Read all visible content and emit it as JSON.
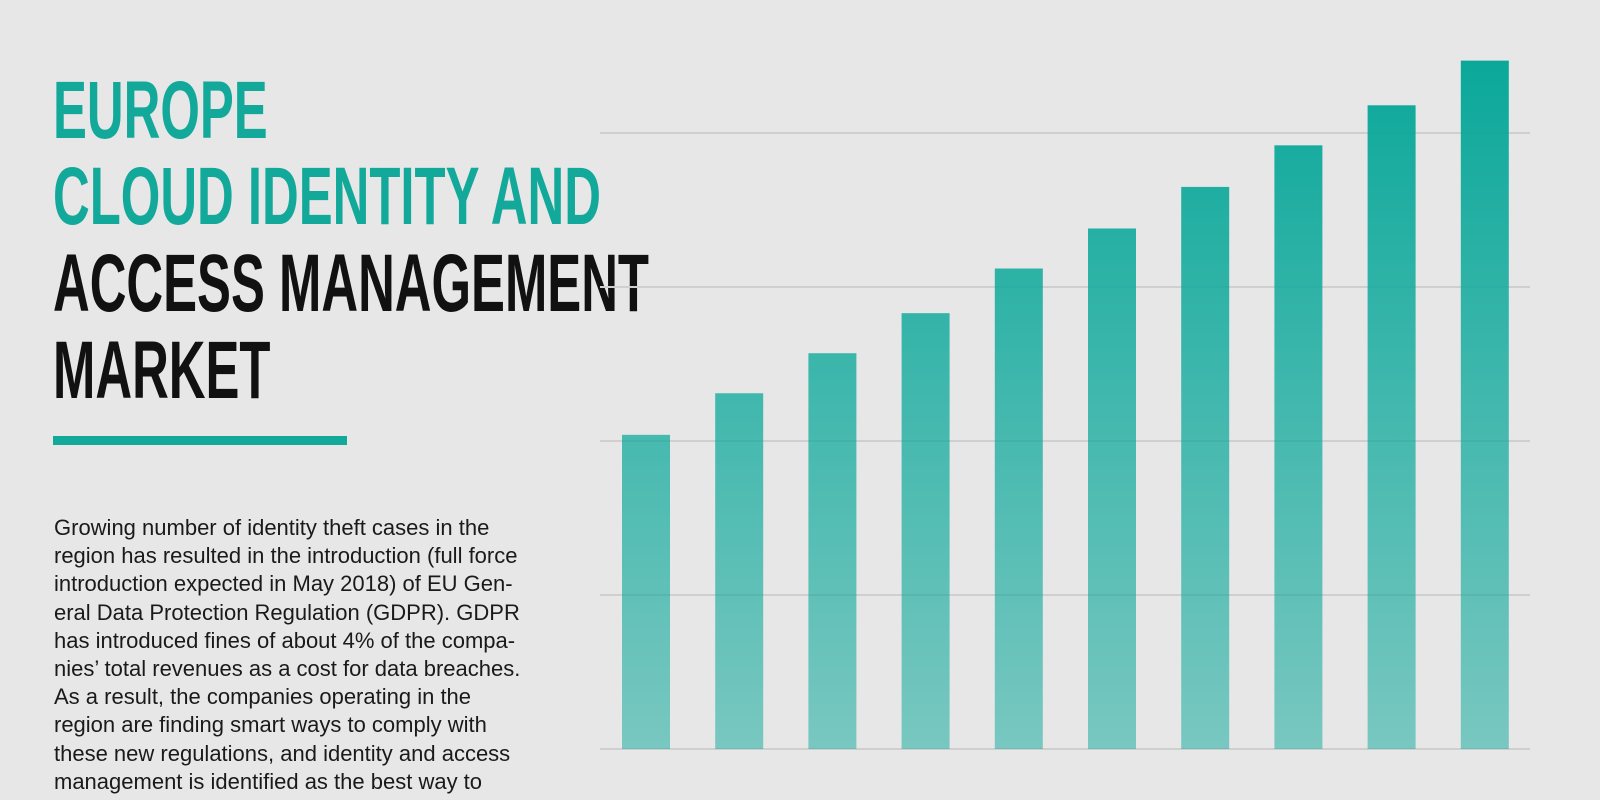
{
  "header": {
    "title_lines": [
      {
        "text": "EUROPE",
        "color": "#12a99b"
      },
      {
        "text": "CLOUD IDENTITY AND",
        "color": "#12a99b"
      },
      {
        "text": "ACCESS MANAGEMENT",
        "color": "#111111"
      },
      {
        "text": "MARKET",
        "color": "#111111"
      }
    ]
  },
  "body": {
    "lines": [
      "Growing number of identity theft cases in the",
      "region has resulted in the introduction (full force",
      "introduction expected in May 2018) of EU Gen-",
      "eral Data Protection Regulation (GDPR). GDPR",
      "has introduced fines of about 4% of the compa-",
      "nies’ total revenues as a cost for data breaches.",
      "As a result, the companies operating in the",
      "region are finding smart ways to comply with",
      "these new regulations, and identity and access",
      "management is identified as the best way to"
    ]
  },
  "chart_data": {
    "type": "bar",
    "values": [
      2.04,
      2.31,
      2.57,
      2.83,
      3.12,
      3.38,
      3.65,
      3.92,
      4.18,
      4.47
    ],
    "color": "#0aa89a",
    "ylim": [
      0,
      4.5
    ],
    "yticks": [
      0,
      1,
      2,
      3,
      4
    ],
    "grid": true
  }
}
